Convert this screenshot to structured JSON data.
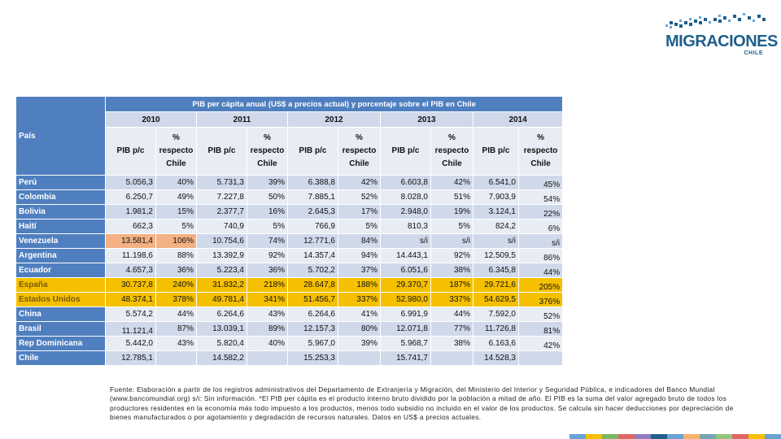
{
  "logo": {
    "text": "MIGRACIONES",
    "subtext": "CHILE"
  },
  "colors": {
    "header_blue": "#4f7fbf",
    "highlight_yellow": "#f5c000",
    "highlight_orange": "#f4b183",
    "brand_blue": "#1f5f8b"
  },
  "table": {
    "country_header": "País",
    "title": "PIB per cápita anual (US$ a precios actual) y porcentaje  sobre el PIB en Chile",
    "years": [
      "2010",
      "2011",
      "2012",
      "2013",
      "2014"
    ],
    "sub_pib": "PIB p/c",
    "sub_pct": "% respecto Chile",
    "rows": [
      {
        "country": "Perú",
        "cells": [
          "5.056,3",
          "40%",
          "5.731,3",
          "39%",
          "6.388,8",
          "42%",
          "6.603,8",
          "42%",
          "6.541,0",
          "45%"
        ]
      },
      {
        "country": "Colombia",
        "cells": [
          "6.250,7",
          "49%",
          "7.227,8",
          "50%",
          "7.885,1",
          "52%",
          "8.028,0",
          "51%",
          "7.903,9",
          "54%"
        ]
      },
      {
        "country": "Bolivia",
        "cells": [
          "1.981,2",
          "15%",
          "2.377,7",
          "16%",
          "2.645,3",
          "17%",
          "2.948,0",
          "19%",
          "3.124,1",
          "22%"
        ]
      },
      {
        "country": "Haití",
        "cells": [
          "662,3",
          "5%",
          "740,9",
          "5%",
          "766,9",
          "5%",
          "810,3",
          "5%",
          "824,2",
          "6%"
        ]
      },
      {
        "country": "Venezuela",
        "cells": [
          "13.581,4",
          "106%",
          "10.754,6",
          "74%",
          "12.771,6",
          "84%",
          "s/i",
          "s/i",
          "s/i",
          "s/i"
        ]
      },
      {
        "country": "Argentina",
        "cells": [
          "11.198,6",
          "88%",
          "13.392,9",
          "92%",
          "14.357,4",
          "94%",
          "14.443,1",
          "92%",
          "12.509,5",
          "86%"
        ]
      },
      {
        "country": "Ecuador",
        "cells": [
          "4.657,3",
          "36%",
          "5.223,4",
          "36%",
          "5.702,2",
          "37%",
          "6.051,6",
          "38%",
          "6.345,8",
          "44%"
        ]
      },
      {
        "country": "España",
        "cells": [
          "30.737,8",
          "240%",
          "31.832,2",
          "218%",
          "28.647,8",
          "188%",
          "29.370,7",
          "187%",
          "29.721,6",
          "205%"
        ]
      },
      {
        "country": "Estados Unidos",
        "cells": [
          "48.374,1",
          "378%",
          "49.781,4",
          "341%",
          "51.456,7",
          "337%",
          "52.980,0",
          "337%",
          "54.629,5",
          "376%"
        ]
      },
      {
        "country": "China",
        "cells": [
          "5.574,2",
          "44%",
          "6.264,6",
          "43%",
          "6.264,6",
          "41%",
          "6.991,9",
          "44%",
          "7.592,0",
          "52%"
        ]
      },
      {
        "country": "Brasil",
        "cells": [
          "11.121,4",
          "87%",
          "13.039,1",
          "89%",
          "12.157,3",
          "80%",
          "12.071,8",
          "77%",
          "11.726,8",
          "81%"
        ]
      },
      {
        "country": "Rep Dominicana",
        "cells": [
          "5.442,0",
          "43%",
          "5.820,4",
          "40%",
          "5.967,0",
          "39%",
          "5.968,7",
          "38%",
          "6.163,6",
          "42%"
        ]
      },
      {
        "country": "Chile",
        "cells": [
          "12.785,1",
          "",
          "14.582,2",
          "",
          "15.253,3",
          "",
          "15.741,7",
          "",
          "14.528,3",
          ""
        ]
      }
    ]
  },
  "source_note": "Fuente: Elaboración a partir de los registros administrativos del Departamento de Extranjería y Migración, del Ministerio del Interior y Seguridad Pública, e indicadores del Banco Mundial (www.bancomundial.org) s/i: Sin información. *El PIB per cápita es el producto interno bruto dividido por la población a mitad de año. El PIB es la suma del valor agregado bruto de todos los productores residentes en la economía más todo impuesto a los productos, menos todo subsidio no incluido en el valor de los productos. Se calcula sin hacer deducciones por depreciación de bienes manufacturados o por agotamiento y degradación de recursos naturales. Datos en US$ a precios actuales."
}
